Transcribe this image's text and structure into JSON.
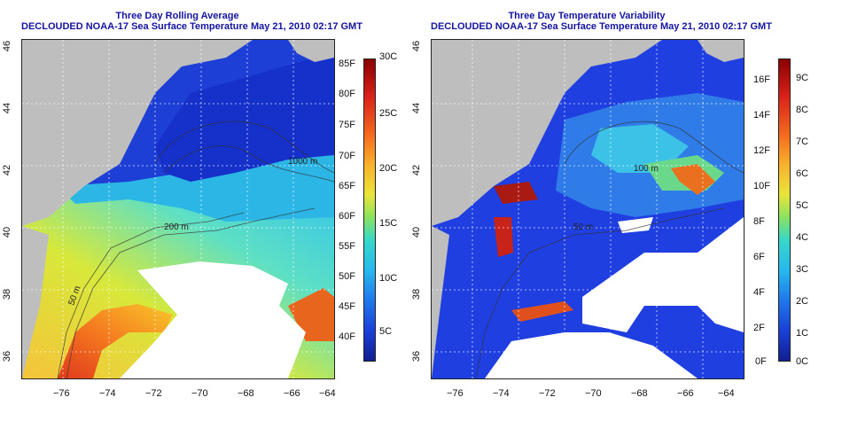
{
  "left_panel": {
    "title_line1": "Three Day Rolling Average",
    "title_line2": "DECLOUDED NOAA-17 Sea Surface Temperature May 21, 2010 02:17 GMT",
    "contour_labels": [
      "1000 m",
      "200 m",
      "50 m"
    ],
    "colorbar": {
      "fahrenheit_labels": [
        "85F",
        "80F",
        "75F",
        "70F",
        "65F",
        "60F",
        "55F",
        "50F",
        "45F",
        "40F"
      ],
      "celsius_labels": [
        "30C",
        "25C",
        "20C",
        "15C",
        "10C",
        "5C"
      ]
    }
  },
  "right_panel": {
    "title_line1": "Three Day Temperature Variability",
    "title_line2": "DECLOUDED NOAA-17 Sea Surface Temperature May 21, 2010 02:17 GMT",
    "contour_labels": [
      "100 m",
      "50 m"
    ],
    "colorbar": {
      "fahrenheit_labels": [
        "16F",
        "14F",
        "12F",
        "10F",
        "8F",
        "6F",
        "4F",
        "2F",
        "0F"
      ],
      "celsius_labels": [
        "9C",
        "8C",
        "7C",
        "6C",
        "5C",
        "4C",
        "3C",
        "2C",
        "1C",
        "0C"
      ]
    }
  },
  "axes": {
    "x_labels": [
      "−76",
      "−74",
      "−72",
      "−70",
      "−68",
      "−66",
      "−64"
    ],
    "y_labels": [
      "46",
      "44",
      "42",
      "40",
      "38",
      "36"
    ]
  },
  "colors": {
    "title": "#1414a0",
    "land": "#bebebe",
    "cloud_gap": "#ffffff"
  }
}
